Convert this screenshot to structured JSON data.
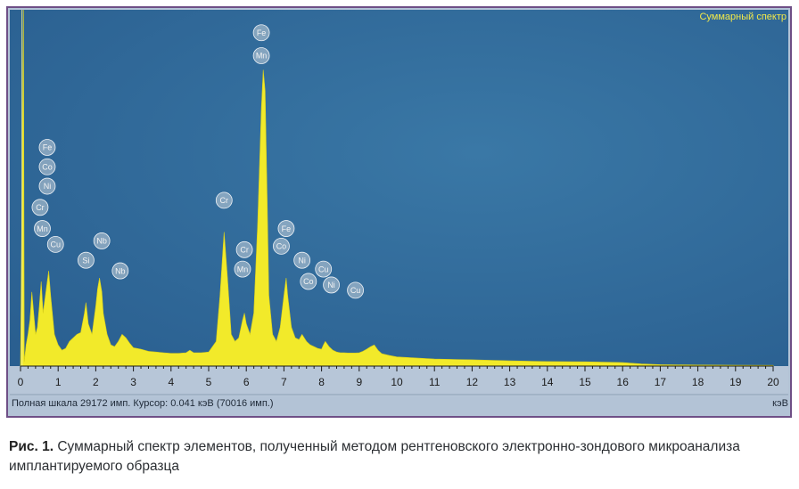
{
  "chart_data": {
    "type": "line",
    "title": "Суммарный спектр",
    "xlabel": "кэВ",
    "xlim": [
      0,
      20
    ],
    "x_ticks": [
      "0",
      "1",
      "2",
      "3",
      "4",
      "5",
      "6",
      "7",
      "8",
      "9",
      "10",
      "11",
      "12",
      "13",
      "14",
      "15",
      "16",
      "17",
      "18",
      "19",
      "20"
    ],
    "series": [
      {
        "x": [
          0.0,
          0.08,
          0.1,
          0.15,
          0.2,
          0.25,
          0.3,
          0.35,
          0.4,
          0.45,
          0.5,
          0.55,
          0.6,
          0.7,
          0.75,
          0.8,
          0.9,
          1.0,
          1.1,
          1.2,
          1.3,
          1.4,
          1.5,
          1.6,
          1.7,
          1.74,
          1.8,
          1.9,
          2.0,
          2.05,
          2.1,
          2.16,
          2.2,
          2.3,
          2.4,
          2.5,
          2.6,
          2.7,
          2.8,
          2.9,
          3.0,
          3.2,
          3.4,
          3.6,
          3.8,
          4.0,
          4.2,
          4.4,
          4.5,
          4.6,
          4.8,
          5.0,
          5.2,
          5.3,
          5.41,
          5.5,
          5.6,
          5.7,
          5.8,
          5.9,
          5.95,
          6.0,
          6.1,
          6.2,
          6.3,
          6.4,
          6.45,
          6.5,
          6.55,
          6.6,
          6.7,
          6.8,
          6.9,
          7.0,
          7.06,
          7.1,
          7.2,
          7.3,
          7.4,
          7.48,
          7.6,
          7.7,
          7.8,
          7.9,
          8.0,
          8.05,
          8.1,
          8.2,
          8.3,
          8.4,
          8.5,
          8.6,
          8.7,
          8.9,
          9.0,
          9.1,
          9.2,
          9.3,
          9.4,
          9.5,
          9.6,
          9.8,
          10.0,
          11.0,
          12.0,
          13.0,
          14.0,
          15.0,
          15.5,
          16.0,
          16.5,
          17.0,
          18.0,
          19.0,
          20.0
        ],
        "y": [
          0,
          30000,
          120,
          600,
          900,
          1300,
          2100,
          1500,
          900,
          1100,
          1700,
          2400,
          1500,
          2300,
          2700,
          2000,
          900,
          600,
          450,
          500,
          700,
          800,
          900,
          950,
          1500,
          1800,
          1200,
          900,
          1700,
          2200,
          2500,
          2100,
          1500,
          900,
          600,
          550,
          700,
          900,
          800,
          650,
          520,
          480,
          420,
          400,
          380,
          360,
          360,
          380,
          450,
          380,
          380,
          400,
          700,
          2000,
          3800,
          2500,
          900,
          700,
          800,
          1300,
          1500,
          1200,
          900,
          1500,
          4000,
          7300,
          8400,
          7800,
          5000,
          2000,
          900,
          700,
          1100,
          2000,
          2500,
          2000,
          1100,
          800,
          750,
          900,
          700,
          600,
          550,
          500,
          480,
          600,
          700,
          550,
          450,
          400,
          380,
          380,
          370,
          370,
          380,
          420,
          480,
          550,
          600,
          450,
          350,
          300,
          260,
          200,
          180,
          150,
          130,
          120,
          110,
          100,
          60,
          40,
          30,
          25,
          20
        ]
      }
    ],
    "peak_labels": [
      {
        "x": 0.71,
        "y": 6200,
        "text": "Fe"
      },
      {
        "x": 0.71,
        "y": 5650,
        "text": "Co"
      },
      {
        "x": 0.71,
        "y": 5100,
        "text": "Ni"
      },
      {
        "x": 0.52,
        "y": 4500,
        "text": "Cr"
      },
      {
        "x": 0.58,
        "y": 3900,
        "text": "Mn"
      },
      {
        "x": 0.93,
        "y": 3450,
        "text": "Cu"
      },
      {
        "x": 1.74,
        "y": 3000,
        "text": "Si"
      },
      {
        "x": 2.16,
        "y": 3550,
        "text": "Nb"
      },
      {
        "x": 2.65,
        "y": 2700,
        "text": "Nb"
      },
      {
        "x": 5.41,
        "y": 4700,
        "text": "Cr"
      },
      {
        "x": 5.95,
        "y": 3300,
        "text": "Cr"
      },
      {
        "x": 5.9,
        "y": 2750,
        "text": "Mn"
      },
      {
        "x": 6.4,
        "y": 9450,
        "text": "Fe"
      },
      {
        "x": 6.4,
        "y": 8800,
        "text": "Mn"
      },
      {
        "x": 7.06,
        "y": 3900,
        "text": "Fe"
      },
      {
        "x": 6.93,
        "y": 3400,
        "text": "Co"
      },
      {
        "x": 7.48,
        "y": 3000,
        "text": "Ni"
      },
      {
        "x": 7.65,
        "y": 2400,
        "text": "Co"
      },
      {
        "x": 8.05,
        "y": 2750,
        "text": "Cu"
      },
      {
        "x": 8.26,
        "y": 2300,
        "text": "Ni"
      },
      {
        "x": 8.9,
        "y": 2150,
        "text": "Cu"
      }
    ]
  },
  "status": {
    "full_scale": "Полная шкала 29172 имп.  Курсор: 0.041 кэВ (70016 имп.)",
    "unit": "кэВ"
  },
  "caption": {
    "label": "Рис. 1.",
    "text": " Суммарный спектр элементов, полученный методом рентгеновского электронно-зондового микроанализа имплантируемого образца"
  },
  "colors": {
    "plot_background": "#2f6a9b",
    "spectrum_fill": "#f2ea2a",
    "frame": "#6f4f86",
    "label_bubble": "#c9d3dc"
  }
}
